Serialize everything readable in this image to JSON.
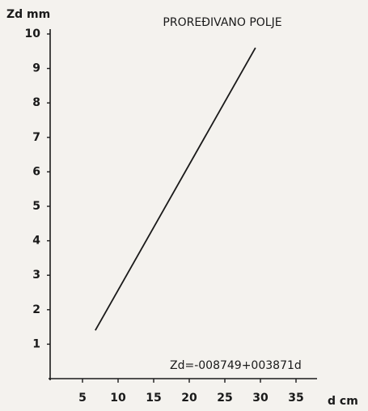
{
  "chart_data": {
    "type": "line",
    "title": "PROREĐIVANO POLJE",
    "y_label": "Zd mm",
    "x_label": "d cm",
    "annotation": "Zd=-008749+003871d",
    "x": [
      6.8,
      29.3
    ],
    "values": [
      1.4,
      9.6
    ],
    "color": "#1a1a1a",
    "xlim": [
      0,
      38
    ],
    "xticks": [
      5,
      10,
      15,
      20,
      25,
      30,
      35
    ],
    "ylim": [
      0,
      10
    ],
    "yticks": [
      1,
      2,
      3,
      4,
      5,
      6,
      7,
      8,
      9,
      10
    ],
    "grid": false
  }
}
